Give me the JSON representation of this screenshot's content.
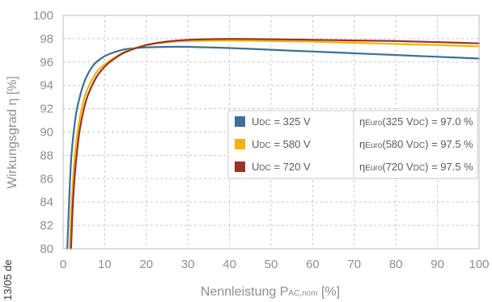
{
  "chart_data": {
    "type": "line",
    "xlabel": {
      "main": "Nennleistung P",
      "sub": "AC,nom",
      "unit": " [%]"
    },
    "ylabel": {
      "main": "Wirkungsgrad η [%]"
    },
    "xlim": [
      0,
      100
    ],
    "ylim": [
      80,
      100
    ],
    "x_ticks": [
      "0",
      "10",
      "20",
      "30",
      "40",
      "50",
      "60",
      "70",
      "80",
      "90",
      "100"
    ],
    "y_ticks": [
      "80",
      "82",
      "84",
      "86",
      "88",
      "90",
      "92",
      "94",
      "96",
      "98",
      "100"
    ],
    "grid": true,
    "legend_position": "center-right",
    "series": [
      {
        "name": "U",
        "color": "#3d6f9a",
        "legend": {
          "main": "U",
          "sub": "DC",
          "rest": " = 325 V"
        },
        "note": {
          "eta": "η",
          "sub1": "Euro",
          "mid": "(325 V",
          "sub2": "DC",
          "rest": ") = 97.0 %"
        },
        "x": [
          1,
          1.5,
          2,
          3,
          4,
          5,
          6,
          7,
          8,
          10,
          12,
          15,
          20,
          25,
          30,
          40,
          50,
          60,
          70,
          80,
          90,
          100
        ],
        "y": [
          80,
          84.5,
          88,
          91.3,
          93.0,
          94.2,
          95.0,
          95.6,
          96.0,
          96.5,
          96.8,
          97.1,
          97.25,
          97.3,
          97.3,
          97.2,
          97.05,
          96.9,
          96.75,
          96.6,
          96.45,
          96.3
        ]
      },
      {
        "name": "U",
        "color": "#f2b400",
        "legend": {
          "main": "U",
          "sub": "DC",
          "rest": " = 580 V"
        },
        "note": {
          "eta": "η",
          "sub1": "Euro",
          "mid": "(580 V",
          "sub2": "DC",
          "rest": ") = 97.5 %"
        },
        "x": [
          1.6,
          2,
          2.5,
          3,
          4,
          5,
          6,
          8,
          10,
          12,
          15,
          20,
          25,
          30,
          40,
          50,
          60,
          70,
          80,
          90,
          100
        ],
        "y": [
          80,
          83.5,
          86.5,
          88.6,
          91.2,
          92.8,
          93.8,
          95.1,
          95.8,
          96.3,
          96.9,
          97.45,
          97.7,
          97.8,
          97.85,
          97.8,
          97.75,
          97.65,
          97.55,
          97.45,
          97.35
        ]
      },
      {
        "name": "U",
        "color": "#9a3226",
        "legend": {
          "main": "U",
          "sub": "DC",
          "rest": " = 720 V"
        },
        "note": {
          "eta": "η",
          "sub1": "Euro",
          "mid": "(720 V",
          "sub2": "DC",
          "rest": ") = 97.5 %"
        },
        "x": [
          1.9,
          2.3,
          2.8,
          3.5,
          4,
          5,
          6,
          8,
          10,
          12,
          15,
          20,
          25,
          30,
          40,
          50,
          60,
          70,
          80,
          90,
          100
        ],
        "y": [
          80,
          83.5,
          86.3,
          88.8,
          90.2,
          92.0,
          93.2,
          94.7,
          95.6,
          96.2,
          96.85,
          97.45,
          97.75,
          97.9,
          97.98,
          97.95,
          97.9,
          97.85,
          97.8,
          97.7,
          97.6
        ]
      }
    ],
    "side_text": "13/05 de"
  }
}
